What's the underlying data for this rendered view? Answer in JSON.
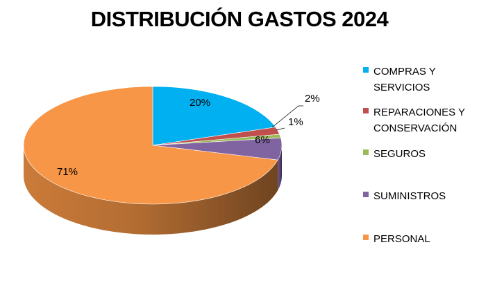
{
  "chart_data": {
    "type": "pie",
    "title": "DISTRIBUCIÓN GASTOS 2024",
    "legend_position": "right",
    "three_d": true,
    "slices": [
      {
        "name": "COMPRAS Y SERVICIOS",
        "value": 20,
        "label": "20%",
        "color": "#00B0F0"
      },
      {
        "name": "REPARACIONES Y CONSERVACIÓN",
        "value": 2,
        "label": "2%",
        "color": "#C0504D"
      },
      {
        "name": "SEGUROS",
        "value": 1,
        "label": "1%",
        "color": "#9BBB59"
      },
      {
        "name": "SUMINISTROS",
        "value": 6,
        "label": "6%",
        "color": "#8064A2"
      },
      {
        "name": "PERSONAL",
        "value": 71,
        "label": "71%",
        "color": "#F79646"
      }
    ]
  },
  "legend": [
    {
      "label": "COMPRAS Y\nSERVICIOS",
      "color": "#00B0F0"
    },
    {
      "label": "REPARACIONES Y\nCONSERVACIÓN",
      "color": "#C0504D"
    },
    {
      "label": "SEGUROS",
      "color": "#9BBB59"
    },
    {
      "label": "SUMINISTROS",
      "color": "#8064A2"
    },
    {
      "label": "PERSONAL",
      "color": "#F79646"
    }
  ]
}
